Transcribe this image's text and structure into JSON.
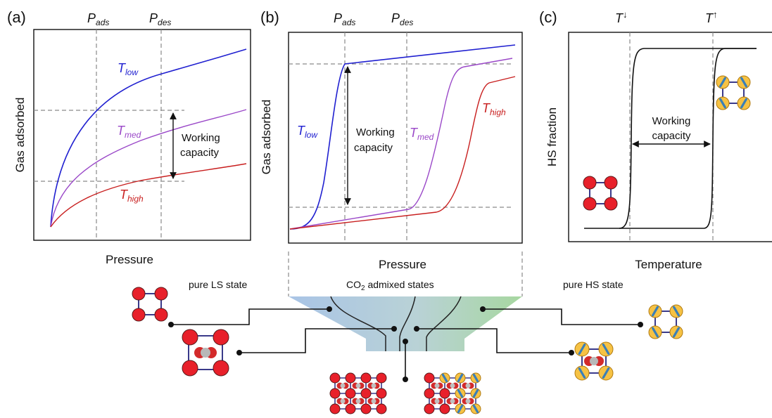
{
  "colors": {
    "low": "#1f1fd0",
    "med": "#9a48c8",
    "high": "#c81e1e",
    "ls_node": "#e8202a",
    "hs_node": "#f6c244",
    "spin_arrow": "#3a7fb8",
    "funnel_left": "#a9c4e6",
    "funnel_right": "#a7d7a0"
  },
  "panels": {
    "a": {
      "letter": "(a)",
      "p_ads": "P",
      "p_ads_sub": "ads",
      "p_des": "P",
      "p_des_sub": "des",
      "ylabel": "Gas adsorbed",
      "xlabel": "Pressure",
      "t": "T",
      "low": "low",
      "med": "med",
      "high": "high",
      "wc1": "Working",
      "wc2": "capacity"
    },
    "b": {
      "letter": "(b)",
      "p_ads": "P",
      "p_ads_sub": "ads",
      "p_des": "P",
      "p_des_sub": "des",
      "ylabel": "Gas adsorbed",
      "xlabel": "Pressure",
      "t": "T",
      "low": "low",
      "med": "med",
      "high": "high",
      "wc1": "Working",
      "wc2": "capacity"
    },
    "c": {
      "letter": "(c)",
      "t_down": "T",
      "t_down_sup": "↓",
      "t_up": "T",
      "t_up_sup": "↑",
      "ylabel": "HS fraction",
      "xlabel": "Temperature",
      "wc1": "Working",
      "wc2": "capacity"
    }
  },
  "bottom": {
    "pure_ls": "pure LS state",
    "co2_pre": "CO",
    "co2_sub": "2",
    "co2_post": " admixed states",
    "pure_hs": "pure HS state"
  }
}
